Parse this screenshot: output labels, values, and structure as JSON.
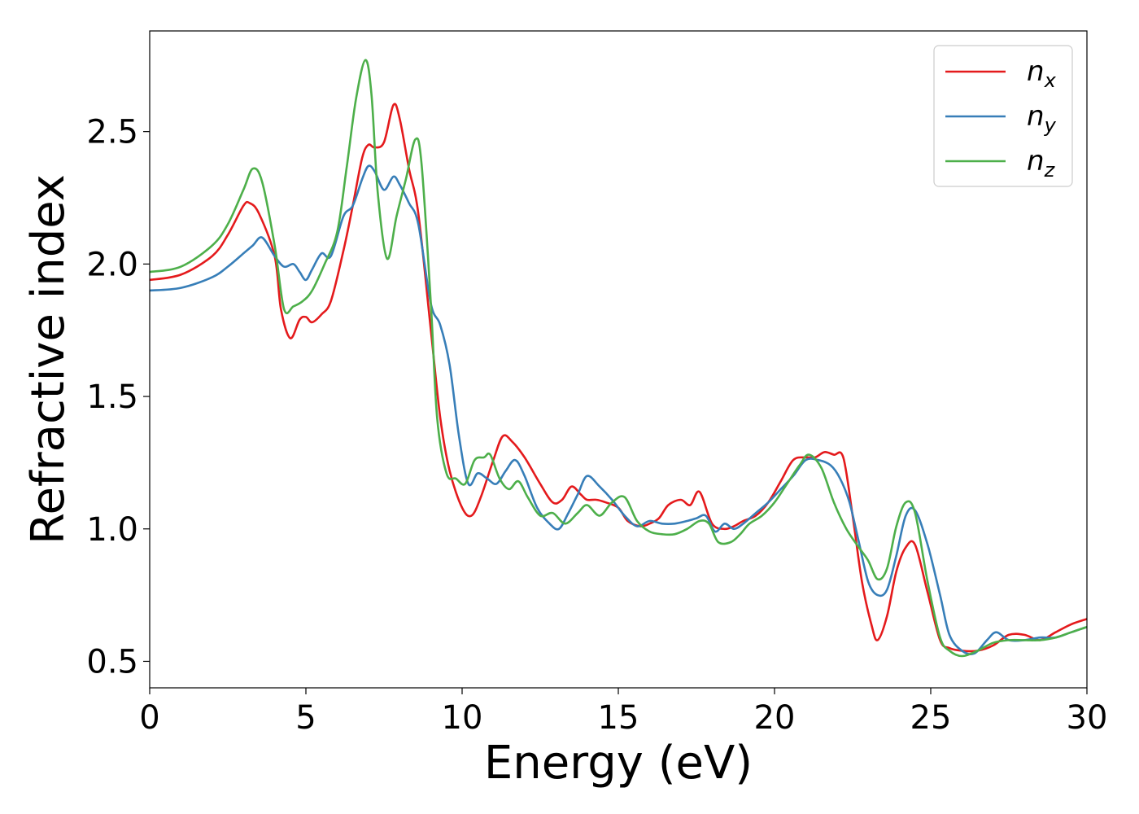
{
  "chart_data": {
    "type": "line",
    "xlabel": "Energy (eV)",
    "ylabel": "Refractive index",
    "xlim": [
      0,
      30
    ],
    "ylim": [
      0.4,
      2.88
    ],
    "xticks": [
      0,
      5,
      10,
      15,
      20,
      25,
      30
    ],
    "yticks": [
      0.5,
      1.0,
      1.5,
      2.0,
      2.5
    ],
    "xtick_labels": [
      "0",
      "5",
      "10",
      "15",
      "20",
      "25",
      "30"
    ],
    "ytick_labels": [
      "0.5",
      "1.0",
      "1.5",
      "2.0",
      "2.5"
    ],
    "grid": false,
    "legend_position": "top-right",
    "series": [
      {
        "name": "n",
        "subscript": "x",
        "color": "#e41a1c",
        "x": [
          0,
          1,
          2,
          2.5,
          3,
          3.2,
          3.5,
          4,
          4.2,
          4.5,
          4.8,
          5,
          5.2,
          5.5,
          5.8,
          6.2,
          6.5,
          6.8,
          7,
          7.2,
          7.5,
          7.8,
          8,
          8.3,
          8.6,
          9,
          9.3,
          9.6,
          10,
          10.3,
          10.6,
          11,
          11.3,
          11.6,
          12,
          12.5,
          12.9,
          13.2,
          13.5,
          13.8,
          14,
          14.3,
          14.6,
          15,
          15.3,
          15.7,
          16,
          16.3,
          16.6,
          17,
          17.3,
          17.6,
          18,
          18.4,
          18.7,
          19,
          19.4,
          19.8,
          20.2,
          20.6,
          21,
          21.3,
          21.6,
          21.9,
          22.2,
          22.5,
          22.8,
          23.1,
          23.3,
          23.6,
          23.9,
          24.2,
          24.5,
          24.9,
          25.3,
          25.6,
          26,
          26.5,
          27,
          27.5,
          28,
          28.5,
          29,
          29.5,
          30
        ],
        "y": [
          1.94,
          1.96,
          2.03,
          2.11,
          2.22,
          2.23,
          2.19,
          2.03,
          1.83,
          1.72,
          1.79,
          1.8,
          1.78,
          1.81,
          1.86,
          2.05,
          2.22,
          2.4,
          2.45,
          2.44,
          2.46,
          2.6,
          2.55,
          2.36,
          2.19,
          1.75,
          1.42,
          1.22,
          1.08,
          1.05,
          1.12,
          1.26,
          1.35,
          1.33,
          1.27,
          1.17,
          1.1,
          1.11,
          1.16,
          1.13,
          1.11,
          1.11,
          1.1,
          1.08,
          1.03,
          1.01,
          1.02,
          1.04,
          1.09,
          1.11,
          1.09,
          1.14,
          1.02,
          1.0,
          1.01,
          1.03,
          1.05,
          1.1,
          1.18,
          1.26,
          1.27,
          1.27,
          1.29,
          1.28,
          1.27,
          1.05,
          0.8,
          0.64,
          0.58,
          0.67,
          0.84,
          0.93,
          0.94,
          0.76,
          0.58,
          0.55,
          0.54,
          0.54,
          0.56,
          0.6,
          0.6,
          0.58,
          0.61,
          0.64,
          0.66
        ]
      },
      {
        "name": "n",
        "subscript": "y",
        "color": "#377eb8",
        "x": [
          0,
          1,
          2,
          2.5,
          3,
          3.3,
          3.6,
          4,
          4.3,
          4.6,
          4.8,
          5,
          5.2,
          5.5,
          5.8,
          6.2,
          6.5,
          6.8,
          7,
          7.2,
          7.5,
          7.8,
          8,
          8.3,
          8.6,
          9,
          9.3,
          9.6,
          9.9,
          10.2,
          10.5,
          10.8,
          11.1,
          11.4,
          11.7,
          12,
          12.4,
          12.8,
          13.1,
          13.4,
          13.7,
          14,
          14.4,
          14.8,
          15.2,
          15.6,
          16,
          16.4,
          16.8,
          17.2,
          17.5,
          17.8,
          18.1,
          18.4,
          18.7,
          19,
          19.4,
          19.8,
          20.2,
          20.6,
          21,
          21.4,
          21.8,
          22.1,
          22.4,
          22.7,
          23,
          23.3,
          23.6,
          23.9,
          24.2,
          24.5,
          24.9,
          25.3,
          25.6,
          26,
          26.4,
          26.8,
          27.1,
          27.5,
          28,
          28.5,
          29,
          29.5,
          30
        ],
        "y": [
          1.9,
          1.91,
          1.95,
          1.99,
          2.04,
          2.07,
          2.1,
          2.03,
          1.99,
          2.0,
          1.97,
          1.94,
          1.98,
          2.04,
          2.03,
          2.18,
          2.22,
          2.32,
          2.37,
          2.35,
          2.28,
          2.33,
          2.3,
          2.23,
          2.15,
          1.85,
          1.77,
          1.62,
          1.35,
          1.17,
          1.21,
          1.19,
          1.17,
          1.22,
          1.26,
          1.2,
          1.08,
          1.02,
          1.0,
          1.06,
          1.13,
          1.2,
          1.16,
          1.11,
          1.05,
          1.01,
          1.03,
          1.02,
          1.02,
          1.03,
          1.04,
          1.05,
          0.99,
          1.02,
          1.0,
          1.02,
          1.06,
          1.1,
          1.15,
          1.2,
          1.26,
          1.26,
          1.24,
          1.19,
          1.1,
          0.95,
          0.8,
          0.75,
          0.77,
          0.9,
          1.05,
          1.07,
          0.94,
          0.75,
          0.6,
          0.54,
          0.53,
          0.58,
          0.61,
          0.58,
          0.58,
          0.59,
          0.59,
          0.61,
          0.63
        ]
      },
      {
        "name": "n",
        "subscript": "z",
        "color": "#4daf4a",
        "x": [
          0,
          1,
          2,
          2.5,
          3,
          3.3,
          3.6,
          4,
          4.3,
          4.6,
          4.9,
          5.2,
          5.6,
          6,
          6.3,
          6.6,
          6.9,
          7.1,
          7.3,
          7.6,
          7.9,
          8.2,
          8.5,
          8.7,
          9,
          9.2,
          9.5,
          9.8,
          10.1,
          10.4,
          10.7,
          10.9,
          11.2,
          11.5,
          11.8,
          12.1,
          12.5,
          12.9,
          13.3,
          13.7,
          14,
          14.4,
          14.8,
          15.2,
          15.6,
          16,
          16.4,
          16.8,
          17.2,
          17.6,
          17.9,
          18.2,
          18.6,
          18.9,
          19.2,
          19.6,
          20,
          20.4,
          20.8,
          21.1,
          21.5,
          21.9,
          22.3,
          22.7,
          23,
          23.3,
          23.6,
          23.9,
          24.2,
          24.5,
          24.9,
          25.3,
          25.6,
          26,
          26.5,
          27,
          27.5,
          28,
          28.5,
          29,
          29.5,
          30
        ],
        "y": [
          1.97,
          1.99,
          2.07,
          2.15,
          2.28,
          2.36,
          2.31,
          2.07,
          1.83,
          1.84,
          1.86,
          1.9,
          2.0,
          2.12,
          2.36,
          2.62,
          2.77,
          2.64,
          2.27,
          2.02,
          2.18,
          2.32,
          2.47,
          2.38,
          1.85,
          1.42,
          1.21,
          1.19,
          1.17,
          1.26,
          1.27,
          1.28,
          1.19,
          1.15,
          1.18,
          1.12,
          1.05,
          1.06,
          1.02,
          1.06,
          1.09,
          1.05,
          1.1,
          1.12,
          1.03,
          0.99,
          0.98,
          0.98,
          1.0,
          1.03,
          1.02,
          0.95,
          0.95,
          0.98,
          1.02,
          1.05,
          1.1,
          1.17,
          1.24,
          1.28,
          1.23,
          1.1,
          1.0,
          0.93,
          0.88,
          0.81,
          0.85,
          1.01,
          1.1,
          1.06,
          0.8,
          0.59,
          0.54,
          0.52,
          0.54,
          0.57,
          0.58,
          0.58,
          0.58,
          0.59,
          0.61,
          0.63
        ]
      }
    ]
  }
}
